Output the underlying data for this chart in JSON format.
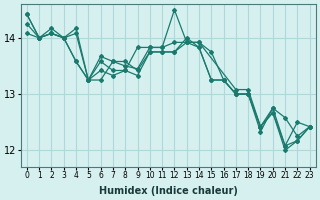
{
  "xlabel": "Humidex (Indice chaleur)",
  "ylabel": "",
  "background_color": "#d6f0f0",
  "grid_color": "#b0d8d8",
  "line_color": "#1a7a6e",
  "marker_color": "#1a7a6e",
  "xlim": [
    -0.5,
    23.5
  ],
  "ylim": [
    11.7,
    14.6
  ],
  "yticks": [
    12,
    13,
    14
  ],
  "xtick_labels": [
    "0",
    "1",
    "2",
    "3",
    "4",
    "5",
    "6",
    "7",
    "8",
    "9",
    "10",
    "11",
    "12",
    "13",
    "14",
    "15",
    "16",
    "17",
    "18",
    "19",
    "20",
    "21",
    "22",
    "23"
  ],
  "lines": [
    {
      "x": [
        0,
        1,
        2,
        3,
        4,
        5,
        6,
        7,
        8,
        9,
        10,
        11,
        12,
        13,
        14,
        15,
        16,
        17,
        18,
        19,
        20,
        21,
        22,
        23
      ],
      "y": [
        14.42,
        14.0,
        14.17,
        14.0,
        14.17,
        13.25,
        13.67,
        13.58,
        13.5,
        13.45,
        13.83,
        13.83,
        14.5,
        13.92,
        13.92,
        13.75,
        13.25,
        13.0,
        13.0,
        12.33,
        12.75,
        12.08,
        12.5,
        12.42
      ]
    },
    {
      "x": [
        0,
        1,
        2,
        3,
        4,
        5,
        6,
        7,
        8,
        9,
        10,
        11,
        12,
        13,
        14,
        17,
        18,
        19,
        20,
        21,
        22,
        23
      ],
      "y": [
        14.08,
        14.0,
        14.08,
        14.0,
        14.08,
        13.25,
        13.58,
        13.42,
        13.42,
        13.83,
        13.83,
        13.83,
        13.92,
        13.92,
        13.92,
        13.08,
        13.08,
        12.42,
        12.75,
        12.58,
        12.25,
        12.42
      ]
    },
    {
      "x": [
        0,
        1,
        2,
        3,
        4,
        5,
        6,
        7,
        8,
        9,
        10,
        11,
        12,
        13,
        14,
        15,
        16,
        17,
        18,
        19,
        20,
        21,
        22,
        23
      ],
      "y": [
        14.42,
        14.0,
        14.08,
        14.0,
        13.58,
        13.25,
        13.42,
        13.33,
        13.42,
        13.33,
        13.75,
        13.75,
        13.75,
        13.92,
        13.83,
        13.25,
        13.25,
        13.0,
        13.0,
        12.42,
        12.67,
        12.0,
        12.17,
        12.42
      ]
    },
    {
      "x": [
        0,
        1,
        2,
        3,
        4,
        5,
        6,
        7,
        8,
        9,
        10,
        11,
        12,
        13,
        14,
        15,
        16,
        17,
        18,
        19,
        20,
        21,
        22,
        23
      ],
      "y": [
        14.25,
        14.0,
        14.08,
        14.0,
        13.58,
        13.25,
        13.25,
        13.58,
        13.58,
        13.42,
        13.75,
        13.75,
        13.75,
        14.0,
        13.83,
        13.25,
        13.25,
        13.0,
        13.0,
        12.42,
        12.67,
        12.08,
        12.17,
        12.42
      ]
    }
  ]
}
